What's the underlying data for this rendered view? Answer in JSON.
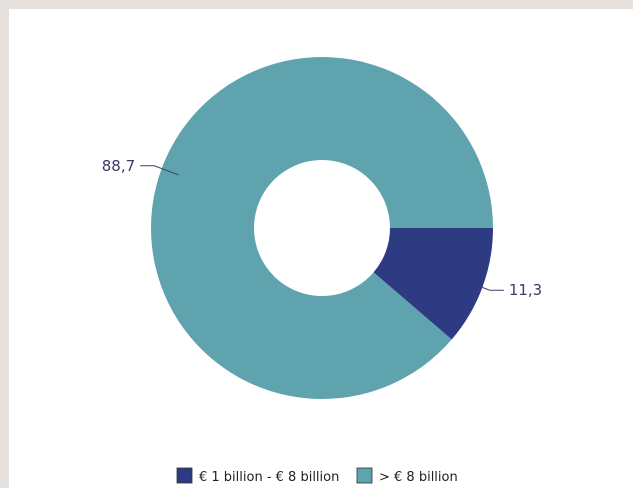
{
  "colors": {
    "background": "#e6e1dc",
    "panel": "#ffffff",
    "series_small": "#2e3a82",
    "series_large": "#5fa3ae",
    "label_text": "#3b3a6b"
  },
  "chart_data": {
    "type": "pie",
    "donut": true,
    "title": "",
    "categories": [
      "€ 1 billion - € 8 billion",
      "> € 8 billion"
    ],
    "values": [
      11.3,
      88.7
    ],
    "data_labels": [
      "11,3",
      "88,7"
    ],
    "colors": [
      "#2e3a82",
      "#5fa3ae"
    ],
    "legend": {
      "placement": "bottom",
      "entries": [
        "€ 1 billion - € 8 billion",
        "> € 8 billion"
      ]
    }
  }
}
